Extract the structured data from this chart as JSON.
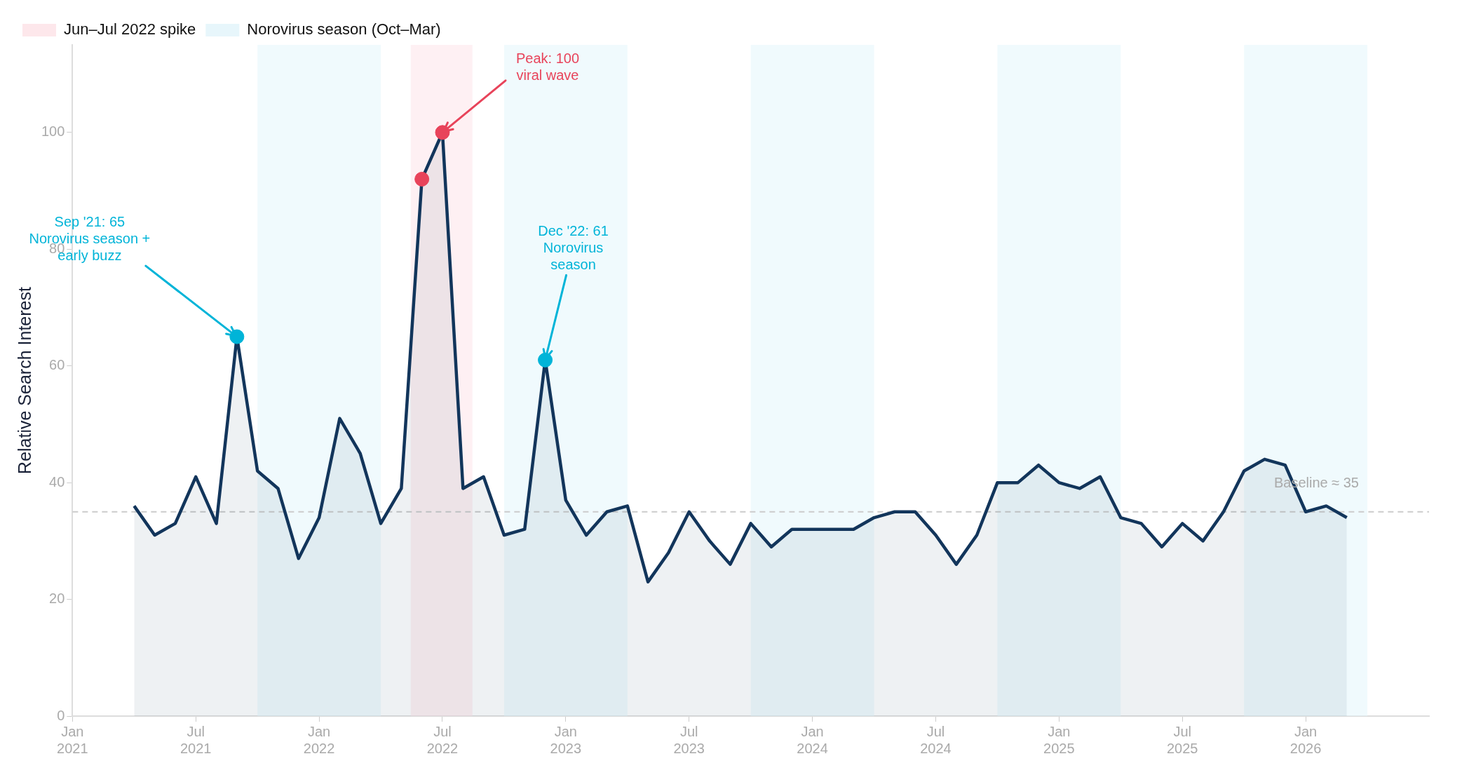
{
  "chart_data": {
    "type": "area",
    "ylabel": "Relative Search Interest",
    "x": [
      "2021-04",
      "2021-05",
      "2021-06",
      "2021-07",
      "2021-08",
      "2021-09",
      "2021-10",
      "2021-11",
      "2021-12",
      "2022-01",
      "2022-02",
      "2022-03",
      "2022-04",
      "2022-05",
      "2022-06",
      "2022-07",
      "2022-08",
      "2022-09",
      "2022-10",
      "2022-11",
      "2022-12",
      "2023-01",
      "2023-02",
      "2023-03",
      "2023-04",
      "2023-05",
      "2023-06",
      "2023-07",
      "2023-08",
      "2023-09",
      "2023-10",
      "2023-11",
      "2023-12",
      "2024-01",
      "2024-02",
      "2024-03",
      "2024-04",
      "2024-05",
      "2024-06",
      "2024-07",
      "2024-08",
      "2024-09",
      "2024-10",
      "2024-11",
      "2024-12",
      "2025-01",
      "2025-02",
      "2025-03",
      "2025-04",
      "2025-05",
      "2025-06",
      "2025-07",
      "2025-08",
      "2025-09",
      "2025-10",
      "2025-11",
      "2025-12",
      "2026-01",
      "2026-02",
      "2026-03"
    ],
    "series": [
      {
        "color": "#12355b",
        "values": [
          36,
          31,
          33,
          41,
          33,
          65,
          42,
          39,
          27,
          34,
          51,
          45,
          33,
          39,
          92,
          100,
          39,
          41,
          31,
          32,
          61,
          37,
          31,
          35,
          36,
          23,
          28,
          35,
          30,
          26,
          33,
          29,
          32,
          32,
          32,
          32,
          34,
          35,
          35,
          31,
          26,
          31,
          40,
          40,
          43,
          40,
          39,
          41,
          34,
          33,
          29,
          33,
          30,
          35,
          42,
          44,
          43,
          35,
          36,
          34
        ]
      },
      {
        "type": "scatter",
        "color": "#e8435a",
        "x": [
          "2022-06",
          "2022-07"
        ],
        "values": [
          92,
          100
        ]
      },
      {
        "type": "scatter",
        "color": "#00b4d8",
        "x": [
          "2021-09",
          "2022-12"
        ],
        "values": [
          65,
          61
        ]
      }
    ],
    "xlim": [
      "2021-01",
      "2026-07"
    ],
    "xticks": [
      {
        "value": "2021-01",
        "label": "Jan\n2021"
      },
      {
        "value": "2021-07",
        "label": "Jul\n2021"
      },
      {
        "value": "2022-01",
        "label": "Jan\n2022"
      },
      {
        "value": "2022-07",
        "label": "Jul\n2022"
      },
      {
        "value": "2023-01",
        "label": "Jan\n2023"
      },
      {
        "value": "2023-07",
        "label": "Jul\n2023"
      },
      {
        "value": "2024-01",
        "label": "Jan\n2024"
      },
      {
        "value": "2024-07",
        "label": "Jul\n2024"
      },
      {
        "value": "2025-01",
        "label": "Jan\n2025"
      },
      {
        "value": "2025-07",
        "label": "Jul\n2025"
      },
      {
        "value": "2026-01",
        "label": "Jan\n2026"
      }
    ],
    "ylim": [
      0,
      115
    ],
    "yticks": [
      0,
      20,
      40,
      60,
      80,
      100
    ],
    "grid": false,
    "legend": "top left",
    "ref_lines": [
      {
        "axis": "y",
        "value": 35,
        "label": "Baseline ≈ 35",
        "color": "#cccccc",
        "line_style": "dashed"
      }
    ],
    "bands": [
      {
        "axis": "x",
        "from": "2022-05-15",
        "to": "2022-08-15",
        "label": "Jun–Jul 2022 spike",
        "color": "#fde4e9"
      },
      {
        "axis": "x",
        "from": "2021-10",
        "to": "2022-04",
        "label": "Norovirus season (Oct–Mar)",
        "color": "#e4f5fb"
      },
      {
        "axis": "x",
        "from": "2022-10",
        "to": "2023-04",
        "color": "#e4f5fb"
      },
      {
        "axis": "x",
        "from": "2023-10",
        "to": "2024-04",
        "color": "#e4f5fb"
      },
      {
        "axis": "x",
        "from": "2024-10",
        "to": "2025-04",
        "color": "#e4f5fb"
      },
      {
        "axis": "x",
        "from": "2025-10",
        "to": "2026-04",
        "color": "#e4f5fb"
      }
    ],
    "annotations": [
      {
        "text": "Sep '21: 65\nNorovirus season +\nearly buzz",
        "x": "2021-09",
        "y": 65
      },
      {
        "text": "Peak: 100\nviral wave",
        "x": "2022-07",
        "y": 100
      },
      {
        "text": "Dec '22: 61\nNorovirus\nseason",
        "x": "2022-12",
        "y": 61
      }
    ]
  }
}
